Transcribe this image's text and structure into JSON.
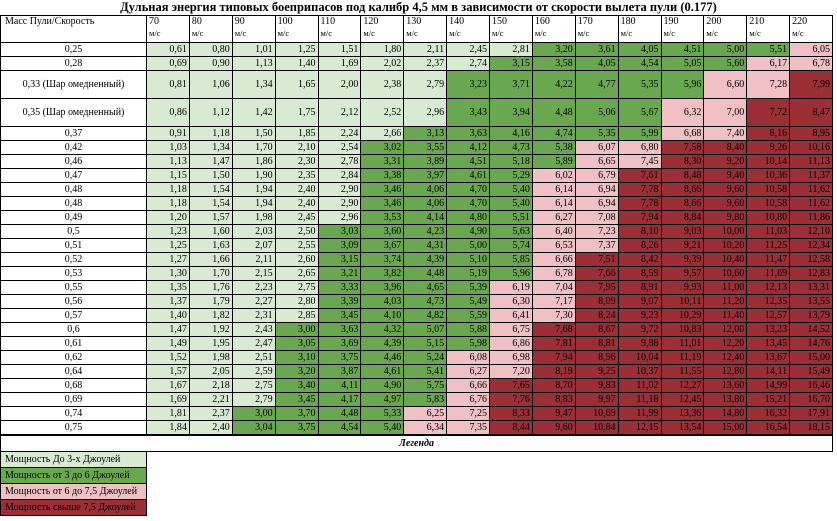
{
  "title": "Дульная энергия типовых боеприпасов под калибр 4,5 мм в зависимости от скорости вылета пули (0.177)",
  "corner_label": "Масс Пули/Скорость",
  "speed_unit": "м/с",
  "colors": {
    "c1": "#d9ead3",
    "c2": "#6aa84f",
    "c3": "#f0c0c4",
    "c4": "#9c2f36"
  },
  "legend": {
    "title": "Легенда",
    "items": [
      {
        "cls": "c1",
        "label": "Мощность До 3-х Джоулей"
      },
      {
        "cls": "c2",
        "label": "Мощность от 3 до 6 Джоулей"
      },
      {
        "cls": "c3",
        "label": "Мощность от 6 до 7,5 Джоулей"
      },
      {
        "cls": "c4",
        "label": "Мощность свыше 7,5 Джоулей"
      }
    ]
  },
  "chart_data": {
    "type": "table",
    "title": "Дульная энергия типовых боеприпасов под калибр 4,5 мм в зависимости от скорости вылета пули (0.177)",
    "columns": [
      "70",
      "80",
      "90",
      "100",
      "110",
      "120",
      "130",
      "140",
      "150",
      "160",
      "170",
      "180",
      "190",
      "200",
      "210",
      "220"
    ],
    "rows": [
      {
        "mass": "0,25",
        "values": [
          "0,61",
          "0,80",
          "1,01",
          "1,25",
          "1,51",
          "1,80",
          "2,11",
          "2,45",
          "2,81",
          "3,20",
          "3,61",
          "4,05",
          "4,51",
          "5,00",
          "5,51",
          "6,05"
        ]
      },
      {
        "mass": "0,28",
        "values": [
          "0,69",
          "0,90",
          "1,13",
          "1,40",
          "1,69",
          "2,02",
          "2,37",
          "2,74",
          "3,15",
          "3,58",
          "4,05",
          "4,54",
          "5,05",
          "5,60",
          "6,17",
          "6,78"
        ]
      },
      {
        "mass": "0,33 (Шар омедненный)",
        "values": [
          "0,81",
          "1,06",
          "1,34",
          "1,65",
          "2,00",
          "2,38",
          "2,79",
          "3,23",
          "3,71",
          "4,22",
          "4,77",
          "5,35",
          "5,96",
          "6,60",
          "7,28",
          "7,99"
        ]
      },
      {
        "mass": "0,35 (Шар омедненный)",
        "values": [
          "0,86",
          "1,12",
          "1,42",
          "1,75",
          "2,12",
          "2,52",
          "2,96",
          "3,43",
          "3,94",
          "4,48",
          "5,06",
          "5,67",
          "6,32",
          "7,00",
          "7,72",
          "8,47"
        ]
      },
      {
        "mass": "0,37",
        "values": [
          "0,91",
          "1,18",
          "1,50",
          "1,85",
          "2,24",
          "2,66",
          "3,13",
          "3,63",
          "4,16",
          "4,74",
          "5,35",
          "5,99",
          "6,68",
          "7,40",
          "8,16",
          "8,95"
        ]
      },
      {
        "mass": "0,42",
        "values": [
          "1,03",
          "1,34",
          "1,70",
          "2,10",
          "2,54",
          "3,02",
          "3,55",
          "4,12",
          "4,73",
          "5,38",
          "6,07",
          "6,80",
          "7,58",
          "8,40",
          "9,26",
          "10,16"
        ]
      },
      {
        "mass": "0,46",
        "values": [
          "1,13",
          "1,47",
          "1,86",
          "2,30",
          "2,78",
          "3,31",
          "3,89",
          "4,51",
          "5,18",
          "5,89",
          "6,65",
          "7,45",
          "8,30",
          "9,20",
          "10,14",
          "11,13"
        ]
      },
      {
        "mass": "0,47",
        "values": [
          "1,15",
          "1,50",
          "1,90",
          "2,35",
          "2,84",
          "3,38",
          "3,97",
          "4,61",
          "5,29",
          "6,02",
          "6,79",
          "7,61",
          "8,48",
          "9,40",
          "10,36",
          "11,37"
        ]
      },
      {
        "mass": "0,48",
        "values": [
          "1,18",
          "1,54",
          "1,94",
          "2,40",
          "2,90",
          "3,46",
          "4,06",
          "4,70",
          "5,40",
          "6,14",
          "6,94",
          "7,78",
          "8,66",
          "9,60",
          "10,58",
          "11,62"
        ]
      },
      {
        "mass": "0,48",
        "values": [
          "1,18",
          "1,54",
          "1,94",
          "2,40",
          "2,90",
          "3,46",
          "4,06",
          "4,70",
          "5,40",
          "6,14",
          "6,94",
          "7,78",
          "8,66",
          "9,60",
          "10,58",
          "11,62"
        ]
      },
      {
        "mass": "0,49",
        "values": [
          "1,20",
          "1,57",
          "1,98",
          "2,45",
          "2,96",
          "3,53",
          "4,14",
          "4,80",
          "5,51",
          "6,27",
          "7,08",
          "7,94",
          "8,84",
          "9,80",
          "10,80",
          "11,86"
        ]
      },
      {
        "mass": "0,5",
        "values": [
          "1,23",
          "1,60",
          "2,03",
          "2,50",
          "3,03",
          "3,60",
          "4,23",
          "4,90",
          "5,63",
          "6,40",
          "7,23",
          "8,10",
          "9,03",
          "10,00",
          "11,03",
          "12,10"
        ]
      },
      {
        "mass": "0,51",
        "values": [
          "1,25",
          "1,63",
          "2,07",
          "2,55",
          "3,09",
          "3,67",
          "4,31",
          "5,00",
          "5,74",
          "6,53",
          "7,37",
          "8,26",
          "9,21",
          "10,20",
          "11,25",
          "12,34"
        ]
      },
      {
        "mass": "0,52",
        "values": [
          "1,27",
          "1,66",
          "2,11",
          "2,60",
          "3,15",
          "3,74",
          "4,39",
          "5,10",
          "5,85",
          "6,66",
          "7,51",
          "8,42",
          "9,39",
          "10,40",
          "11,47",
          "12,58"
        ]
      },
      {
        "mass": "0,53",
        "values": [
          "1,30",
          "1,70",
          "2,15",
          "2,65",
          "3,21",
          "3,82",
          "4,48",
          "5,19",
          "5,96",
          "6,78",
          "7,66",
          "8,59",
          "9,57",
          "10,60",
          "11,69",
          "12,83"
        ]
      },
      {
        "mass": "0,55",
        "values": [
          "1,35",
          "1,76",
          "2,23",
          "2,75",
          "3,33",
          "3,96",
          "4,65",
          "5,39",
          "6,19",
          "7,04",
          "7,95",
          "8,91",
          "9,93",
          "11,00",
          "12,13",
          "13,31"
        ]
      },
      {
        "mass": "0,56",
        "values": [
          "1,37",
          "1,79",
          "2,27",
          "2,80",
          "3,39",
          "4,03",
          "4,73",
          "5,49",
          "6,30",
          "7,17",
          "8,09",
          "9,07",
          "10,11",
          "11,20",
          "12,35",
          "13,55"
        ]
      },
      {
        "mass": "0,57",
        "values": [
          "1,40",
          "1,82",
          "2,31",
          "2,85",
          "3,45",
          "4,10",
          "4,82",
          "5,59",
          "6,41",
          "7,30",
          "8,24",
          "9,23",
          "10,29",
          "11,40",
          "12,57",
          "13,79"
        ]
      },
      {
        "mass": "0,6",
        "values": [
          "1,47",
          "1,92",
          "2,43",
          "3,00",
          "3,63",
          "4,32",
          "5,07",
          "5,88",
          "6,75",
          "7,68",
          "8,67",
          "9,72",
          "10,83",
          "12,00",
          "13,23",
          "14,52"
        ]
      },
      {
        "mass": "0,61",
        "values": [
          "1,49",
          "1,95",
          "2,47",
          "3,05",
          "3,69",
          "4,39",
          "5,15",
          "5,98",
          "6,86",
          "7,81",
          "8,81",
          "9,88",
          "11,01",
          "12,20",
          "13,45",
          "14,76"
        ]
      },
      {
        "mass": "0,62",
        "values": [
          "1,52",
          "1,98",
          "2,51",
          "3,10",
          "3,75",
          "4,46",
          "5,24",
          "6,08",
          "6,98",
          "7,94",
          "8,96",
          "10,04",
          "11,19",
          "12,40",
          "13,67",
          "15,00"
        ]
      },
      {
        "mass": "0,64",
        "values": [
          "1,57",
          "2,05",
          "2,59",
          "3,20",
          "3,87",
          "4,61",
          "5,41",
          "6,27",
          "7,20",
          "8,19",
          "9,25",
          "10,37",
          "11,55",
          "12,80",
          "14,11",
          "15,49"
        ]
      },
      {
        "mass": "0,68",
        "values": [
          "1,67",
          "2,18",
          "2,75",
          "3,40",
          "4,11",
          "4,90",
          "5,75",
          "6,66",
          "7,65",
          "8,70",
          "9,83",
          "11,02",
          "12,27",
          "13,60",
          "14,99",
          "16,46"
        ]
      },
      {
        "mass": "0,69",
        "values": [
          "1,69",
          "2,21",
          "2,79",
          "3,45",
          "4,17",
          "4,97",
          "5,83",
          "6,76",
          "7,76",
          "8,83",
          "9,97",
          "11,18",
          "12,45",
          "13,80",
          "15,21",
          "16,70"
        ]
      },
      {
        "mass": "0,74",
        "values": [
          "1,81",
          "2,37",
          "3,00",
          "3,70",
          "4,48",
          "5,33",
          "6,25",
          "7,25",
          "8,33",
          "9,47",
          "10,69",
          "11,99",
          "13,36",
          "14,80",
          "16,32",
          "17,91"
        ]
      },
      {
        "mass": "0,75",
        "values": [
          "1,84",
          "2,40",
          "3,04",
          "3,75",
          "4,54",
          "5,40",
          "6,34",
          "7,35",
          "8,44",
          "9,60",
          "10,84",
          "12,15",
          "13,54",
          "15,00",
          "16,54",
          "18,15"
        ]
      }
    ]
  }
}
